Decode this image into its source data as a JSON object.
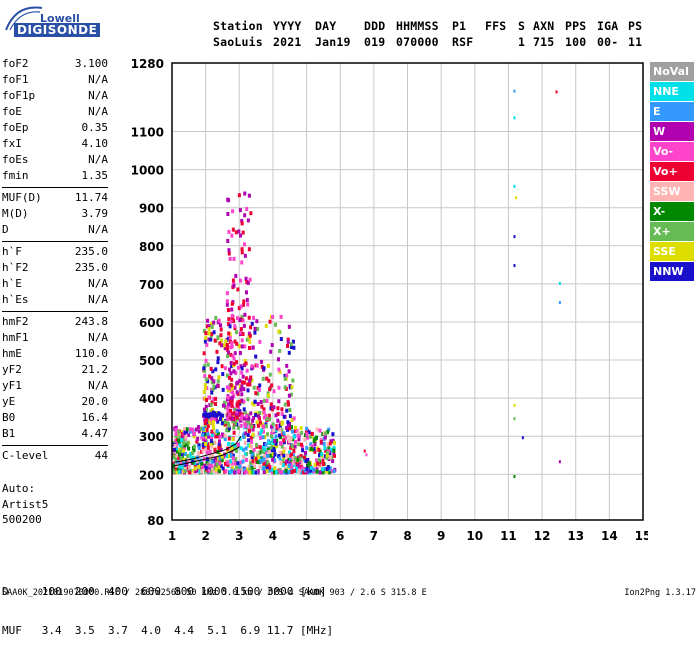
{
  "logo": {
    "top": "Lowell",
    "bottom": "DIGISONDE"
  },
  "header": {
    "row1": [
      "Station",
      "YYYY",
      "DAY",
      "DDD",
      "HHMMSS",
      "P1",
      "FFS",
      "S",
      "AXN",
      "PPS",
      "IGA",
      "PS"
    ],
    "row2": [
      "SaoLuis",
      "2021",
      "Jan19",
      "019",
      "070000",
      "RSF",
      "1",
      "715",
      "100",
      "00-",
      "11"
    ]
  },
  "params": [
    {
      "k": "foF2",
      "v": "3.100"
    },
    {
      "k": "foF1",
      "v": "N/A"
    },
    {
      "k": "foF1p",
      "v": "N/A"
    },
    {
      "k": "foE",
      "v": "N/A"
    },
    {
      "k": "foEp",
      "v": "0.35"
    },
    {
      "k": "fxI",
      "v": "4.10"
    },
    {
      "k": "foEs",
      "v": "N/A"
    },
    {
      "k": "fmin",
      "v": "1.35"
    },
    {
      "k": "MUF(D)",
      "v": "11.74"
    },
    {
      "k": "M(D)",
      "v": "3.79"
    },
    {
      "k": "D",
      "v": "N/A"
    },
    {
      "k": "h`F",
      "v": "235.0"
    },
    {
      "k": "h`F2",
      "v": "235.0"
    },
    {
      "k": "h`E",
      "v": "N/A"
    },
    {
      "k": "h`Es",
      "v": "N/A"
    },
    {
      "k": "hmF2",
      "v": "243.8"
    },
    {
      "k": "hmF1",
      "v": "N/A"
    },
    {
      "k": "hmE",
      "v": "110.0"
    },
    {
      "k": "yF2",
      "v": "21.2"
    },
    {
      "k": "yF1",
      "v": "N/A"
    },
    {
      "k": "yE",
      "v": "20.0"
    },
    {
      "k": "B0",
      "v": "16.4"
    },
    {
      "k": "B1",
      "v": "4.47"
    },
    {
      "k": "C-level",
      "v": "44"
    }
  ],
  "auto": [
    "Auto:",
    "Artist5",
    "500200"
  ],
  "legend": [
    {
      "label": "NoVal",
      "color": "#a0a0a0"
    },
    {
      "label": "NNE",
      "color": "#00e0e8"
    },
    {
      "label": "E",
      "color": "#3399ff"
    },
    {
      "label": "W",
      "color": "#b000b0"
    },
    {
      "label": "Vo-",
      "color": "#ff44cc"
    },
    {
      "label": "Vo+",
      "color": "#ee0033"
    },
    {
      "label": "SSW",
      "color": "#ffb3b3"
    },
    {
      "label": "X-",
      "color": "#008800"
    },
    {
      "label": "X+",
      "color": "#66bb55"
    },
    {
      "label": "SSE",
      "color": "#dddd00"
    },
    {
      "label": "NNW",
      "color": "#1a10cc"
    }
  ],
  "dmuf": {
    "d_row": "D     100  200  400  600  800 1000 1500 3000 [km]",
    "muf_row": "MUF   3.4  3.5  3.7  4.0  4.4  5.1  6.9 11.7 [MHz]"
  },
  "footer": {
    "left": "SAA0K_2021019070000.RSF / 280fx256h 50 kHz 5.0 km / DPS-4 SAA0K 903 / 2.6 S 315.8 E",
    "right": "Ion2Png 1.3.17"
  },
  "chart_data": {
    "type": "scatter",
    "xlim": [
      1,
      15
    ],
    "ylim": [
      80,
      1280
    ],
    "x_ticks": [
      1,
      2,
      3,
      4,
      5,
      6,
      7,
      8,
      9,
      10,
      11,
      12,
      13,
      14,
      15
    ],
    "y_ticks": [
      80,
      200,
      300,
      400,
      500,
      600,
      700,
      800,
      900,
      1000,
      1100,
      1280
    ],
    "grid": true,
    "legend_position": "right",
    "clusters": [
      {
        "x_range": [
          1.0,
          5.8
        ],
        "y_range": [
          210,
          330
        ],
        "colors": [
          "Vo+",
          "Vo-",
          "SSE",
          "X+",
          "X-",
          "E",
          "NNE",
          "W",
          "NNW",
          "SSW"
        ],
        "count": 900
      },
      {
        "x_range": [
          1.9,
          4.6
        ],
        "y_range": [
          330,
          620
        ],
        "colors": [
          "Vo+",
          "Vo-",
          "SSE",
          "W",
          "NNW",
          "X+"
        ],
        "count": 380
      },
      {
        "x_range": [
          2.6,
          3.3
        ],
        "y_range": [
          350,
          950
        ],
        "colors": [
          "W",
          "Vo-",
          "Vo+"
        ],
        "count": 160
      }
    ],
    "features": [
      {
        "type": "band",
        "x_range": [
          1.9,
          2.5
        ],
        "y": 362,
        "color": "NNW"
      },
      {
        "type": "trace",
        "color": "#000000",
        "points": [
          [
            1.05,
            222
          ],
          [
            1.5,
            230
          ],
          [
            2.0,
            240
          ],
          [
            2.5,
            250
          ],
          [
            2.8,
            262
          ],
          [
            3.0,
            272
          ]
        ]
      },
      {
        "type": "trace",
        "color": "#000000",
        "points": [
          [
            1.1,
            232
          ],
          [
            1.6,
            240
          ],
          [
            2.1,
            252
          ],
          [
            2.6,
            265
          ],
          [
            2.9,
            280
          ],
          [
            3.05,
            300
          ]
        ]
      }
    ],
    "sparse_points": [
      {
        "x": 11.15,
        "y": 1210,
        "color": "E"
      },
      {
        "x": 11.15,
        "y": 1140,
        "color": "NNE"
      },
      {
        "x": 12.4,
        "y": 1208,
        "color": "Vo+"
      },
      {
        "x": 11.15,
        "y": 960,
        "color": "NNE"
      },
      {
        "x": 11.2,
        "y": 930,
        "color": "SSE"
      },
      {
        "x": 11.15,
        "y": 828,
        "color": "NNW"
      },
      {
        "x": 11.15,
        "y": 752,
        "color": "NNW"
      },
      {
        "x": 12.5,
        "y": 705,
        "color": "NNE"
      },
      {
        "x": 12.5,
        "y": 655,
        "color": "E"
      },
      {
        "x": 11.15,
        "y": 385,
        "color": "SSE"
      },
      {
        "x": 11.15,
        "y": 350,
        "color": "X+"
      },
      {
        "x": 11.4,
        "y": 300,
        "color": "NNW"
      },
      {
        "x": 12.5,
        "y": 237,
        "color": "W"
      },
      {
        "x": 11.15,
        "y": 198,
        "color": "X-"
      },
      {
        "x": 6.7,
        "y": 265,
        "color": "Vo+"
      },
      {
        "x": 6.75,
        "y": 255,
        "color": "Vo-"
      }
    ]
  }
}
